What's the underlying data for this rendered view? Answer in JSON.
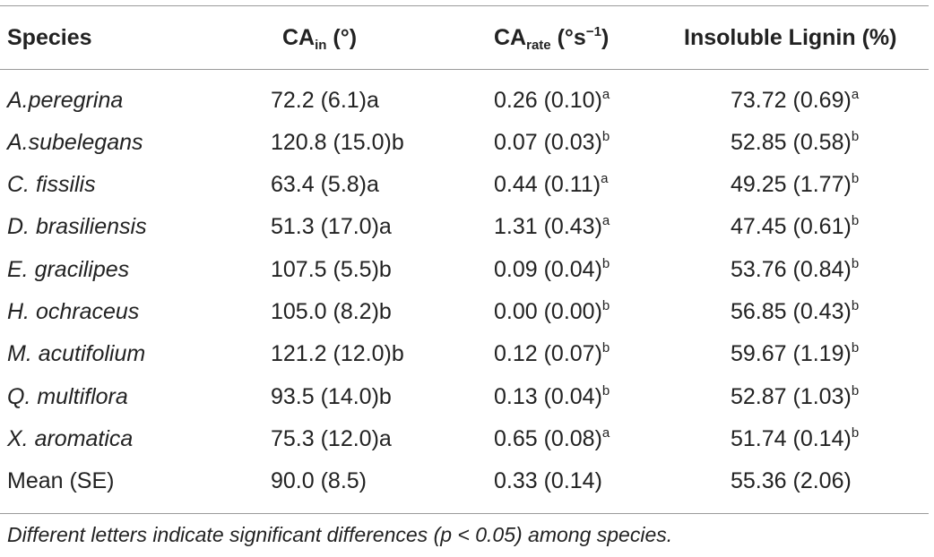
{
  "header": {
    "species": "Species",
    "ca_in_main": "CA",
    "ca_in_sub": "in",
    "ca_in_unit": " (°)",
    "ca_rate_main": "CA",
    "ca_rate_sub": "rate",
    "ca_rate_unit": " (°s",
    "ca_rate_exp": "−1",
    "ca_rate_close": ")",
    "lignin": "Insoluble Lignin (%)"
  },
  "rows": [
    {
      "species": "A.peregrina",
      "ca_in": "72.2 (6.1)a",
      "ca_rate": "0.26 (0.10)",
      "ca_rate_sup": "a",
      "lignin": "73.72 (0.69)",
      "lignin_sup": "a"
    },
    {
      "species": "A.subelegans",
      "ca_in": "120.8 (15.0)b",
      "ca_rate": "0.07 (0.03)",
      "ca_rate_sup": "b",
      "lignin": "52.85 (0.58)",
      "lignin_sup": "b"
    },
    {
      "species": "C. fissilis",
      "ca_in": "63.4 (5.8)a",
      "ca_rate": "0.44 (0.11)",
      "ca_rate_sup": "a",
      "lignin": "49.25 (1.77)",
      "lignin_sup": "b"
    },
    {
      "species": "D. brasiliensis",
      "ca_in": "51.3 (17.0)a",
      "ca_rate": "1.31 (0.43)",
      "ca_rate_sup": "a",
      "lignin": "47.45 (0.61)",
      "lignin_sup": "b"
    },
    {
      "species": "E. gracilipes",
      "ca_in": "107.5 (5.5)b",
      "ca_rate": "0.09 (0.04)",
      "ca_rate_sup": "b",
      "lignin": "53.76 (0.84)",
      "lignin_sup": "b"
    },
    {
      "species": "H. ochraceus",
      "ca_in": "105.0 (8.2)b",
      "ca_rate": "0.00 (0.00)",
      "ca_rate_sup": "b",
      "lignin": "56.85 (0.43)",
      "lignin_sup": "b"
    },
    {
      "species": "M. acutifolium",
      "ca_in": "121.2 (12.0)b",
      "ca_rate": "0.12 (0.07)",
      "ca_rate_sup": "b",
      "lignin": "59.67 (1.19)",
      "lignin_sup": "b"
    },
    {
      "species": "Q. multiflora",
      "ca_in": "93.5 (14.0)b",
      "ca_rate": "0.13 (0.04)",
      "ca_rate_sup": "b",
      "lignin": "52.87 (1.03)",
      "lignin_sup": "b"
    },
    {
      "species": "X. aromatica",
      "ca_in": "75.3 (12.0)a",
      "ca_rate": "0.65 (0.08)",
      "ca_rate_sup": "a",
      "lignin": "51.74 (0.14)",
      "lignin_sup": "b"
    }
  ],
  "mean_row": {
    "label": "Mean (SE)",
    "ca_in": "90.0 (8.5)",
    "ca_rate": "0.33 (0.14)",
    "lignin": "55.36 (2.06)"
  },
  "footnote": "Different letters indicate significant differences (p < 0.05) among species."
}
